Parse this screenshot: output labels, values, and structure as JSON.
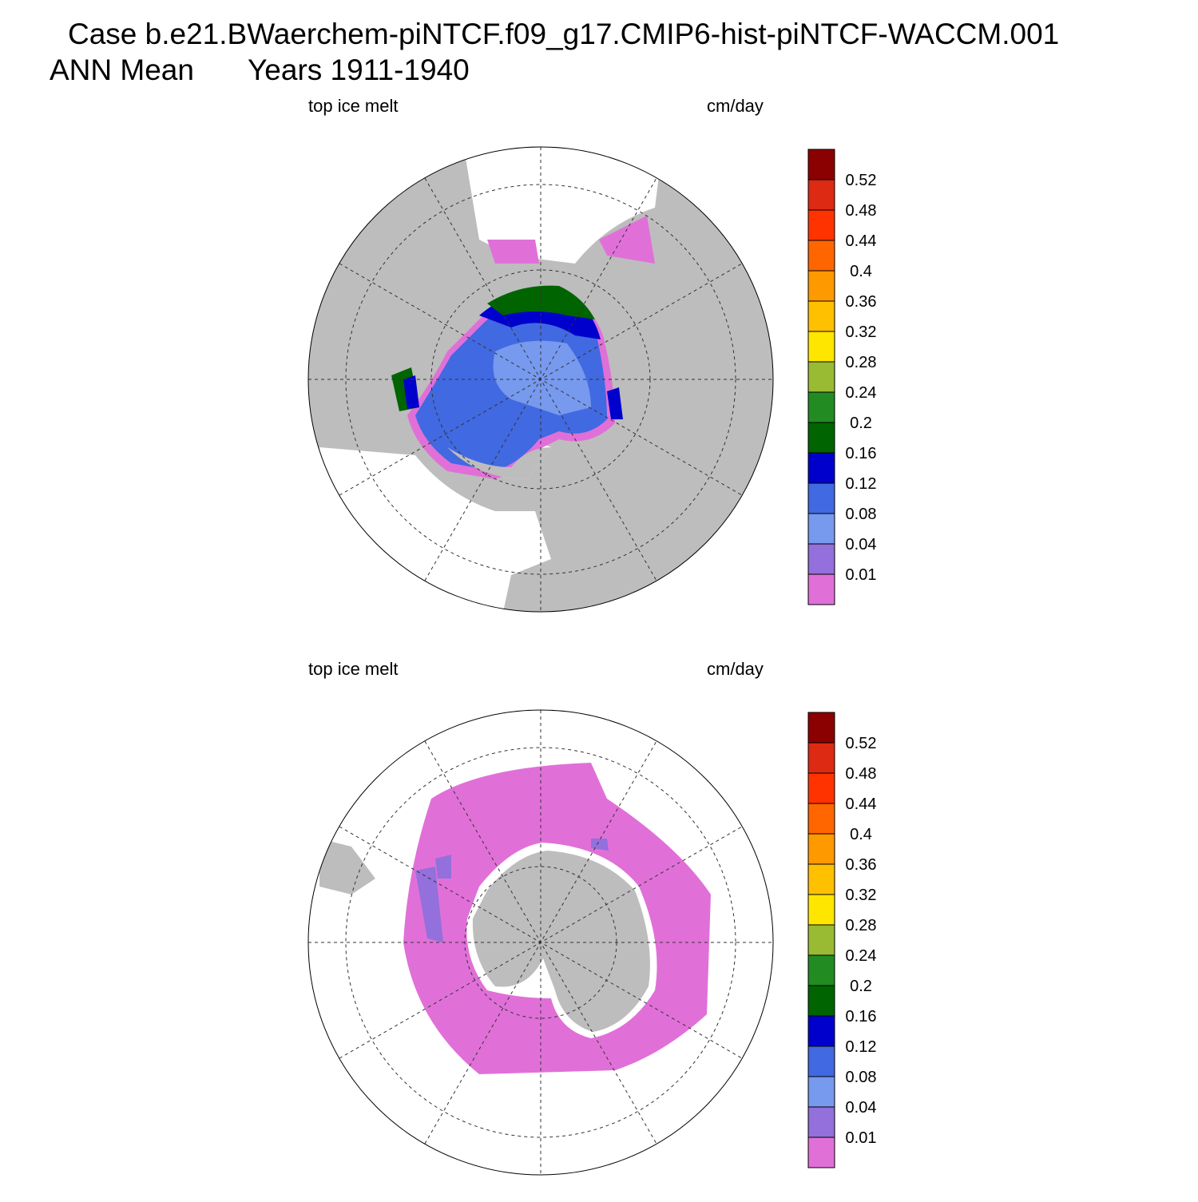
{
  "header": {
    "case": "Case b.e21.BWaerchem-piNTCF.f09_g17.CMIP6-hist-piNTCF-WACCM.001",
    "season": "ANN Mean",
    "years": "Years 1911-1940"
  },
  "panels": [
    {
      "left_label": "top ice melt",
      "right_label": "cm/day",
      "hemisphere": "north"
    },
    {
      "left_label": "top ice melt",
      "right_label": "cm/day",
      "hemisphere": "south"
    }
  ],
  "colorbar": {
    "labels": [
      "0.52",
      "0.48",
      "0.44",
      "0.4",
      "0.36",
      "0.32",
      "0.28",
      "0.24",
      "0.2",
      "0.16",
      "0.12",
      "0.08",
      "0.04",
      "0.01"
    ],
    "colors": [
      "#8b0000",
      "#dd2a12",
      "#ff3300",
      "#ff6600",
      "#ff9900",
      "#ffc000",
      "#ffe600",
      "#99bb33",
      "#228b22",
      "#006400",
      "#0000cd",
      "#4169e1",
      "#7799ee",
      "#9370db",
      "#e070d8"
    ]
  }
}
